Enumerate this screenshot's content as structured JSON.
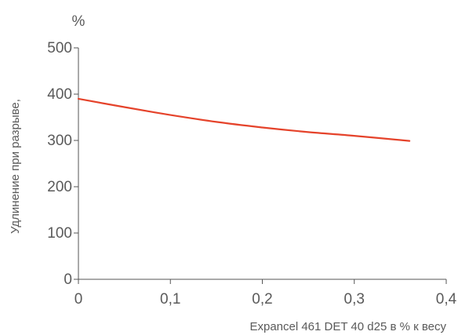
{
  "chart_data": {
    "type": "line",
    "title": "",
    "ylabel": "Удлинение при разрыве,",
    "y_unit": "%",
    "xlabel": "Expancel 461 DET 40 d25 в % к весу",
    "xlim": [
      0,
      0.4
    ],
    "ylim": [
      0,
      500
    ],
    "x_ticks": [
      "0",
      "0,1",
      "0,2",
      "0,3",
      "0,4"
    ],
    "y_ticks": [
      "0",
      "100",
      "200",
      "300",
      "400",
      "500"
    ],
    "grid": false,
    "series": [
      {
        "color": "#e5432b",
        "x": [
          0,
          0.05,
          0.1,
          0.15,
          0.2,
          0.25,
          0.3,
          0.36
        ],
        "y": [
          390,
          372,
          355,
          340,
          328,
          318,
          310,
          299
        ]
      }
    ]
  }
}
